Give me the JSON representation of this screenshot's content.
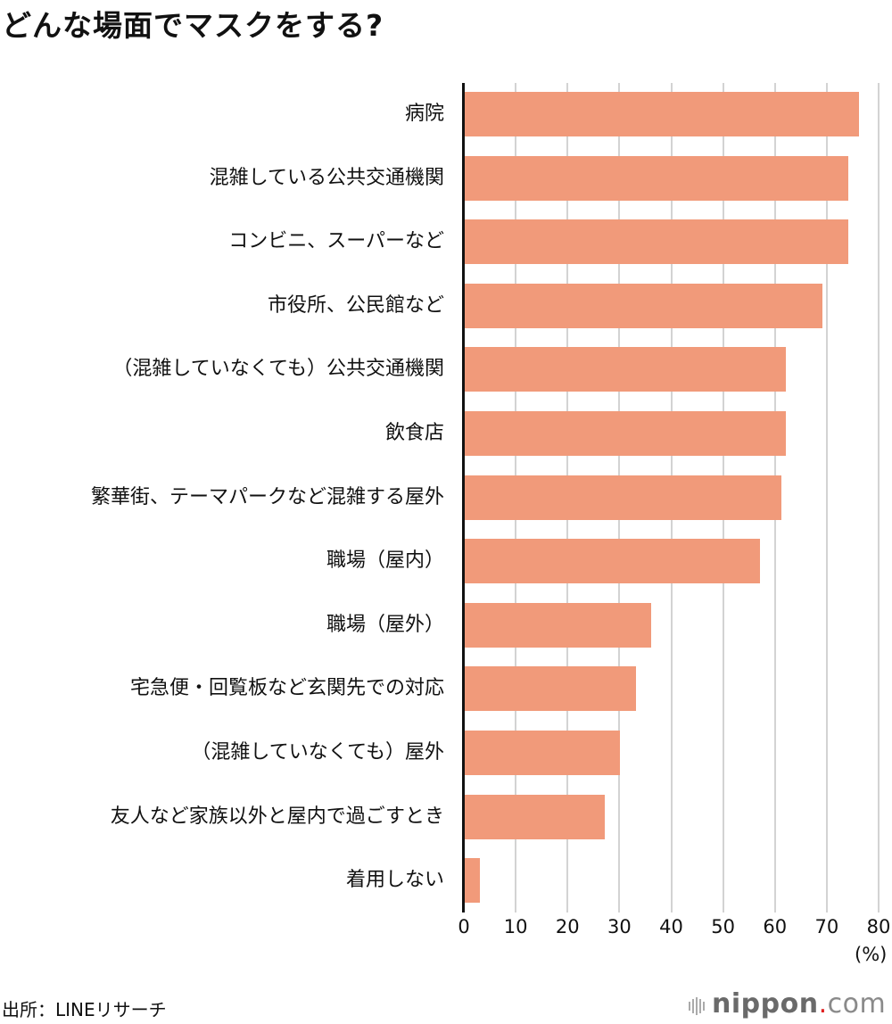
{
  "title": "どんな場面でマスクをする?",
  "source": "出所：LINEリサーチ",
  "logo": {
    "name": "nippon",
    "dot": ".",
    "suffix": "com"
  },
  "colors": {
    "bar": "#f19a7a",
    "grid": "#d3d3d3",
    "axis": "#111111",
    "logo_dot": "#e02020"
  },
  "axis": {
    "ticks": [
      "0",
      "10",
      "20",
      "30",
      "40",
      "50",
      "60",
      "70",
      "80"
    ],
    "unit": "(%)"
  },
  "chart_data": {
    "type": "bar",
    "orientation": "horizontal",
    "title": "どんな場面でマスクをする?",
    "xlabel": "(%)",
    "ylabel": "",
    "xlim": [
      0,
      80
    ],
    "grid": true,
    "categories": [
      "病院",
      "混雑している公共交通機関",
      "コンビニ、スーパーなど",
      "市役所、公民館など",
      "（混雑していなくても）公共交通機関",
      "飲食店",
      "繁華街、テーマパークなど混雑する屋外",
      "職場（屋内）",
      "職場（屋外）",
      "宅急便・回覧板など玄関先での対応",
      "（混雑していなくても）屋外",
      "友人など家族以外と屋内で過ごすとき",
      "着用しない"
    ],
    "values": [
      76,
      74,
      74,
      69,
      62,
      62,
      61,
      57,
      36,
      33,
      30,
      27,
      3
    ],
    "source": "出所：LINEリサーチ"
  }
}
